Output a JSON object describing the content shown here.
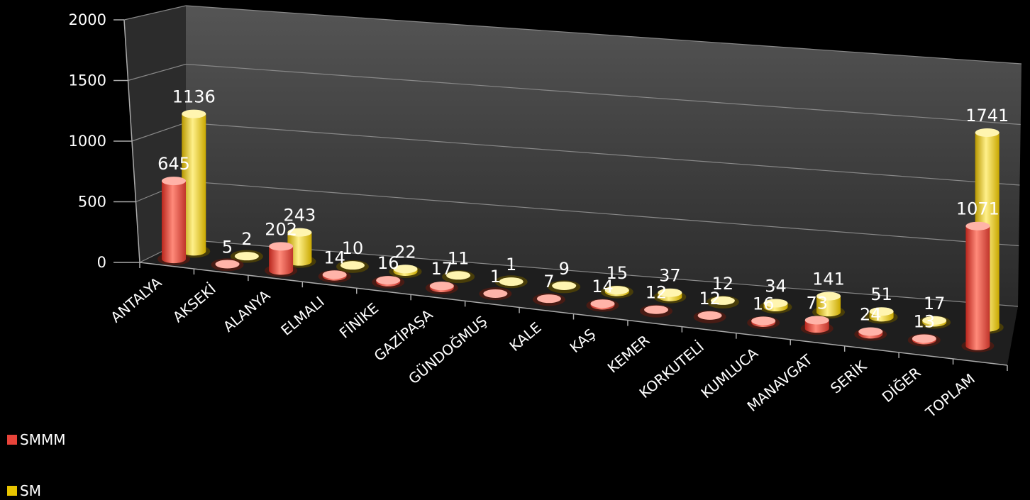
{
  "chart_data": {
    "type": "bar",
    "categories": [
      "ANTALYA",
      "AKSEKİ",
      "ALANYA",
      "ELMALI",
      "FİNİKE",
      "GAZİPAŞA",
      "GÜNDOĞMUŞ",
      "KALE",
      "KAŞ",
      "KEMER",
      "KORKUTELİ",
      "KUMLUCA",
      "MANAVGAT",
      "SERİK",
      "DİĞER",
      "TOPLAM"
    ],
    "series": [
      {
        "name": "SMMM",
        "color": "#e8443a",
        "values": [
          645,
          5,
          202,
          14,
          16,
          17,
          1,
          7,
          14,
          12,
          12,
          16,
          73,
          24,
          13,
          1071
        ]
      },
      {
        "name": "SM",
        "color": "#e8c400",
        "values": [
          1136,
          2,
          243,
          10,
          22,
          11,
          1,
          9,
          15,
          37,
          12,
          34,
          141,
          51,
          17,
          1741
        ]
      }
    ],
    "y_ticks": [
      "0",
      "500",
      "1000",
      "1500",
      "2000"
    ],
    "ylim": [
      0,
      2000
    ],
    "legend_position": "bottom-left"
  }
}
